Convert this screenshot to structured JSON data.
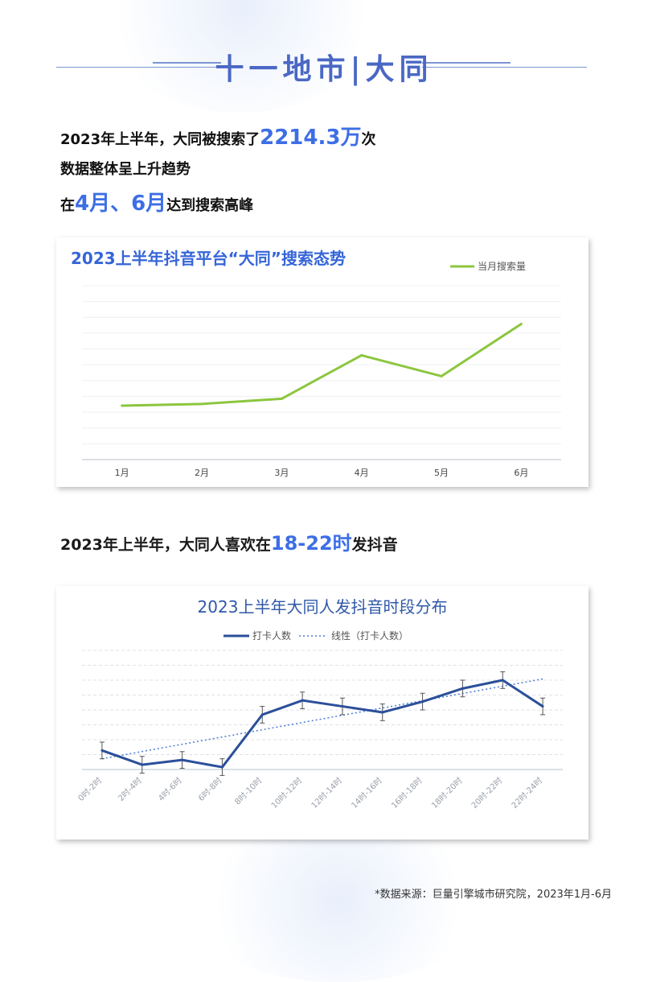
{
  "header": {
    "title": "十一地市|大同"
  },
  "intro": {
    "line1_pre": "2023年上半年，大同被搜索了",
    "line1_highlight": "2214.3万",
    "line1_post": "次",
    "line2": "数据整体呈上升趋势",
    "line3_pre": "在",
    "line3_highlight": "4月、6月",
    "line3_post": "达到搜索高峰"
  },
  "colors": {
    "accent": "#3d6ee6",
    "line1": "#8cc63f",
    "line2": "#2b4f9a"
  },
  "chart_data": [
    {
      "type": "line",
      "title": "2023上半年抖音平台“大同”搜索态势",
      "categories": [
        "1月",
        "2月",
        "3月",
        "4月",
        "5月",
        "6月"
      ],
      "series": [
        {
          "name": "当月搜索量",
          "values": [
            31,
            32,
            35,
            60,
            48,
            78
          ]
        }
      ],
      "ylim": [
        0,
        100
      ],
      "grid": true,
      "legend": "top-right"
    },
    {
      "type": "line",
      "title": "2023上半年大同人发抖音时段分布",
      "categories": [
        "0时-2时",
        "2时-4时",
        "4时-6时",
        "6时-8时",
        "8时-10时",
        "10时-12时",
        "12时-14时",
        "14时-16时",
        "16时-18时",
        "18时-20时",
        "20时-22时",
        "22时-24时"
      ],
      "series": [
        {
          "name": "打卡人数",
          "values": [
            16,
            4,
            8,
            2,
            46,
            58,
            53,
            48,
            57,
            68,
            75,
            53
          ],
          "error": 7
        }
      ],
      "trendline": {
        "name": "线性（打卡人数）",
        "start": 9,
        "end": 76
      },
      "ylim": [
        0,
        100
      ],
      "grid": true,
      "legend": "top"
    }
  ],
  "subhead": {
    "pre": "2023年上半年，大同人喜欢在",
    "highlight": "18-22时",
    "post": "发抖音"
  },
  "source": "*数据来源：巨量引擎城市研究院，2023年1月-6月"
}
